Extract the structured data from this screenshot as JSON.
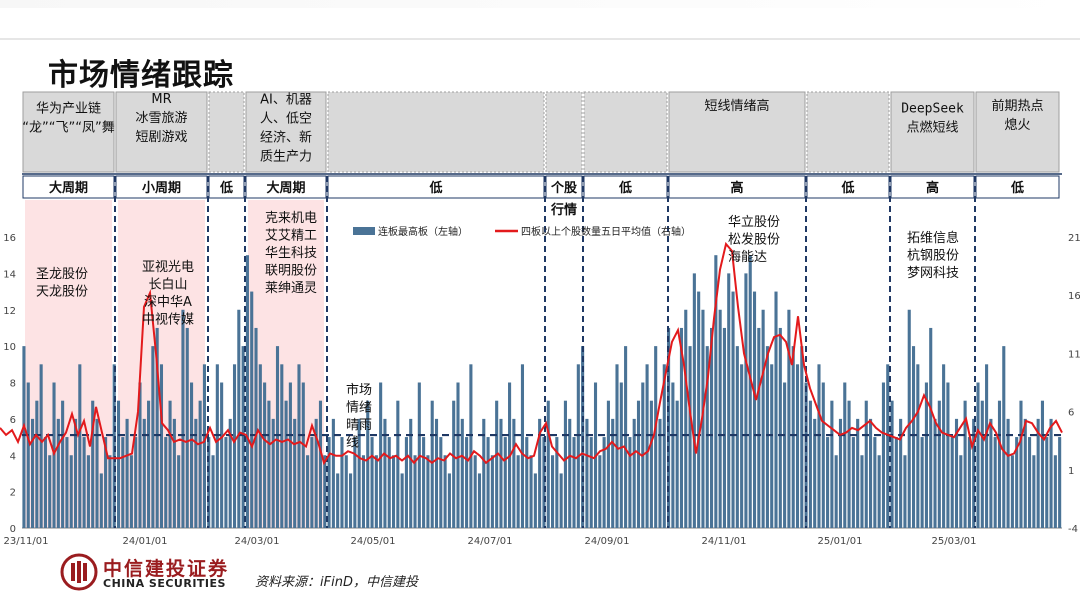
{
  "page": {
    "title": "市场情绪跟踪",
    "source": "资料来源：iFinD，中信建投"
  },
  "brand": {
    "name_cn": "中信建投证券",
    "name_en": "CHINA SECURITIES",
    "color": "#9a1c1f"
  },
  "themes": [
    {
      "lines": [
        "华为产业链",
        "“龙”“飞”“凤”舞"
      ],
      "cycle": "大周期"
    },
    {
      "lines": [
        "MR",
        "冰雪旅游",
        "短剧游戏"
      ],
      "cycle": "小周期"
    },
    {
      "lines": [],
      "cycle": "低"
    },
    {
      "lines": [
        "AI、机器",
        "人、低空",
        "经济、新",
        "质生产力"
      ],
      "cycle": "大周期"
    },
    {
      "lines": [],
      "cycle": "低"
    },
    {
      "lines": [],
      "cycle": "个股"
    },
    {
      "lines": [],
      "cycle": "低"
    },
    {
      "lines": [
        "短线情绪高"
      ],
      "cycle": "高"
    },
    {
      "lines": [],
      "cycle": "低"
    },
    {
      "lines": [
        "DeepSeek",
        "点燃短线"
      ],
      "cycle": "高"
    },
    {
      "lines": [
        "前期热点",
        "熄火"
      ],
      "cycle": "低"
    }
  ],
  "annotations": [
    {
      "lines": [
        "圣龙股份",
        "天龙股份"
      ]
    },
    {
      "lines": [
        "亚视光电",
        "长白山",
        "深中华A",
        "中视传媒"
      ]
    },
    {
      "lines": [
        "克来机电",
        "艾艾精工",
        "华生科技",
        "联明股份",
        "莱绅通灵"
      ]
    },
    {
      "lines": [
        "市场",
        "情绪",
        "晴雨",
        "线"
      ]
    },
    {
      "lines": [
        "行情"
      ]
    },
    {
      "lines": [
        "华立股份",
        "松发股份",
        "海能达"
      ]
    },
    {
      "lines": [
        "拓维信息",
        "杭钢股份",
        "梦网科技"
      ]
    }
  ],
  "chart_data": {
    "type": "bar+line",
    "x_tick_labels": [
      "23/11/01",
      "24/01/01",
      "24/03/01",
      "24/05/01",
      "24/07/01",
      "24/09/01",
      "24/11/01",
      "25/01/01",
      "25/03/01"
    ],
    "left_axis": {
      "ticks": [
        "0",
        "2",
        "4",
        "6",
        "8",
        "10",
        "12",
        "14",
        "16"
      ],
      "ylim": [
        0,
        16
      ]
    },
    "right_axis": {
      "ticks": [
        "-4",
        "1",
        "6",
        "11",
        "16",
        "21"
      ],
      "ylim": [
        -4,
        21
      ]
    },
    "legend": [
      "连板最高板（左轴）",
      "四板以上个股数量五日平均值（右轴）"
    ],
    "bar_color": "#4a7396",
    "line_color": "#e31a1c",
    "baseline_left_value": 5.0,
    "series": [
      {
        "name": "连板最高板（左轴）",
        "axis": "left",
        "values": [
          10,
          8,
          6,
          7,
          9,
          5,
          4,
          8,
          6,
          7,
          5,
          4,
          6,
          9,
          5,
          4,
          7,
          6,
          3,
          5,
          4,
          9,
          7,
          5,
          6,
          4,
          5,
          8,
          6,
          7,
          10,
          11,
          9,
          5,
          7,
          6,
          4,
          12,
          11,
          8,
          6,
          7,
          9,
          5,
          4,
          9,
          8,
          5,
          6,
          9,
          12,
          10,
          15,
          13,
          11,
          9,
          8,
          7,
          6,
          10,
          9,
          7,
          8,
          6,
          9,
          8,
          4,
          5,
          6,
          7,
          4,
          5,
          6,
          3,
          5,
          4,
          3,
          5,
          6,
          4,
          7,
          5,
          4,
          8,
          6,
          5,
          4,
          7,
          3,
          5,
          6,
          4,
          8,
          5,
          4,
          7,
          6,
          5,
          4,
          3,
          7,
          8,
          6,
          5,
          9,
          4,
          3,
          6,
          5,
          4,
          7,
          6,
          5,
          8,
          6,
          4,
          9,
          5,
          4,
          3,
          6,
          5,
          7,
          4,
          5,
          3,
          7,
          6,
          5,
          9,
          10,
          6,
          5,
          8,
          4,
          5,
          7,
          6,
          9,
          8,
          10,
          5,
          6,
          7,
          8,
          9,
          7,
          10,
          6,
          9,
          11,
          8,
          7,
          11,
          12,
          10,
          14,
          13,
          12,
          10,
          11,
          15,
          12,
          11,
          14,
          13,
          10,
          9,
          14,
          15,
          13,
          11,
          12,
          10,
          9,
          13,
          11,
          8,
          12,
          10,
          9,
          10,
          8,
          7,
          6,
          9,
          8,
          5,
          7,
          4,
          6,
          8,
          7,
          5,
          6,
          4,
          7,
          6,
          5,
          4,
          8,
          9,
          7,
          5,
          6,
          4,
          12,
          10,
          9,
          5,
          8,
          11,
          6,
          7,
          9,
          8,
          5,
          6,
          4,
          7,
          5,
          6,
          8,
          7,
          9,
          6,
          5,
          7,
          10,
          6,
          4,
          5,
          7,
          6,
          5,
          4,
          6,
          7,
          5,
          6,
          4,
          5
        ]
      },
      {
        "name": "四板以上个股数量五日平均值（右轴）",
        "axis": "right",
        "points": [
          [
            0,
            4.6
          ],
          [
            6,
            4.0
          ],
          [
            12,
            4.4
          ],
          [
            18,
            3.4
          ],
          [
            24,
            4.8
          ],
          [
            30,
            3.2
          ],
          [
            36,
            4.0
          ],
          [
            42,
            3.4
          ],
          [
            48,
            4.0
          ],
          [
            54,
            2.4
          ],
          [
            60,
            3.4
          ],
          [
            66,
            4.2
          ],
          [
            72,
            5.8
          ],
          [
            78,
            4.0
          ],
          [
            84,
            5.2
          ],
          [
            90,
            3.0
          ],
          [
            96,
            6.4
          ],
          [
            102,
            4.2
          ],
          [
            108,
            2.0
          ],
          [
            114,
            2.0
          ],
          [
            120,
            2.0
          ],
          [
            126,
            2.2
          ],
          [
            132,
            2.4
          ],
          [
            138,
            6.0
          ],
          [
            144,
            15.0
          ],
          [
            150,
            16.2
          ],
          [
            156,
            11.0
          ],
          [
            162,
            5.0
          ],
          [
            168,
            4.4
          ],
          [
            174,
            3.4
          ],
          [
            180,
            3.6
          ],
          [
            186,
            3.4
          ],
          [
            192,
            3.6
          ],
          [
            198,
            3.2
          ],
          [
            204,
            3.4
          ],
          [
            210,
            4.6
          ],
          [
            216,
            3.4
          ],
          [
            222,
            3.8
          ],
          [
            228,
            4.4
          ],
          [
            234,
            3.4
          ],
          [
            240,
            4.2
          ],
          [
            246,
            4.0
          ],
          [
            252,
            3.0
          ],
          [
            258,
            4.4
          ],
          [
            264,
            3.6
          ],
          [
            270,
            3.2
          ],
          [
            276,
            3.6
          ],
          [
            282,
            3.4
          ],
          [
            288,
            3.6
          ],
          [
            294,
            3.2
          ],
          [
            300,
            3.4
          ],
          [
            306,
            3.0
          ],
          [
            312,
            4.8
          ],
          [
            318,
            3.4
          ],
          [
            324,
            1.6
          ],
          [
            330,
            2.4
          ],
          [
            336,
            2.2
          ],
          [
            342,
            2.2
          ],
          [
            348,
            2.6
          ],
          [
            354,
            2.4
          ],
          [
            360,
            2.0
          ],
          [
            366,
            1.8
          ],
          [
            372,
            2.2
          ],
          [
            378,
            1.8
          ],
          [
            384,
            2.4
          ],
          [
            390,
            2.0
          ],
          [
            396,
            2.2
          ],
          [
            402,
            1.8
          ],
          [
            408,
            2.2
          ],
          [
            414,
            1.6
          ],
          [
            420,
            2.2
          ],
          [
            426,
            2.0
          ],
          [
            432,
            1.6
          ],
          [
            438,
            2.0
          ],
          [
            444,
            1.8
          ],
          [
            450,
            2.4
          ],
          [
            456,
            2.0
          ],
          [
            462,
            2.2
          ],
          [
            468,
            1.8
          ],
          [
            474,
            2.6
          ],
          [
            480,
            2.2
          ],
          [
            486,
            1.6
          ],
          [
            492,
            2.0
          ],
          [
            498,
            2.4
          ],
          [
            504,
            1.8
          ],
          [
            510,
            2.2
          ],
          [
            516,
            3.2
          ],
          [
            522,
            2.4
          ],
          [
            528,
            2.0
          ],
          [
            534,
            2.2
          ],
          [
            540,
            4.2
          ],
          [
            546,
            5.0
          ],
          [
            552,
            3.0
          ],
          [
            558,
            2.4
          ],
          [
            564,
            1.8
          ],
          [
            570,
            2.2
          ],
          [
            576,
            2.0
          ],
          [
            582,
            2.4
          ],
          [
            588,
            2.2
          ],
          [
            594,
            2.0
          ],
          [
            600,
            2.6
          ],
          [
            606,
            2.8
          ],
          [
            612,
            3.4
          ],
          [
            618,
            2.8
          ],
          [
            624,
            3.0
          ],
          [
            630,
            2.2
          ],
          [
            636,
            2.6
          ],
          [
            642,
            2.2
          ],
          [
            648,
            2.6
          ],
          [
            654,
            4.0
          ],
          [
            660,
            6.8
          ],
          [
            666,
            9.4
          ],
          [
            672,
            12.0
          ],
          [
            678,
            13.0
          ],
          [
            684,
            10.0
          ],
          [
            690,
            6.0
          ],
          [
            696,
            2.4
          ],
          [
            702,
            5.4
          ],
          [
            708,
            9.0
          ],
          [
            714,
            14.0
          ],
          [
            720,
            18.2
          ],
          [
            726,
            20.4
          ],
          [
            732,
            19.8
          ],
          [
            738,
            15.0
          ],
          [
            744,
            11.0
          ],
          [
            750,
            9.0
          ],
          [
            756,
            7.0
          ],
          [
            762,
            9.0
          ],
          [
            768,
            11.0
          ],
          [
            774,
            12.4
          ],
          [
            780,
            12.6
          ],
          [
            786,
            12.0
          ],
          [
            792,
            10.0
          ],
          [
            798,
            14.2
          ],
          [
            804,
            10.0
          ],
          [
            810,
            8.0
          ],
          [
            816,
            6.6
          ],
          [
            822,
            5.2
          ],
          [
            828,
            4.8
          ],
          [
            834,
            4.4
          ],
          [
            840,
            4.0
          ],
          [
            846,
            4.2
          ],
          [
            852,
            4.6
          ],
          [
            858,
            4.4
          ],
          [
            864,
            4.8
          ],
          [
            870,
            5.2
          ],
          [
            876,
            4.6
          ],
          [
            882,
            4.2
          ],
          [
            888,
            4.0
          ],
          [
            894,
            3.8
          ],
          [
            900,
            3.6
          ],
          [
            906,
            4.6
          ],
          [
            912,
            5.2
          ],
          [
            918,
            6.0
          ],
          [
            924,
            7.4
          ],
          [
            930,
            6.4
          ],
          [
            936,
            5.0
          ],
          [
            942,
            4.2
          ],
          [
            948,
            4.0
          ],
          [
            954,
            3.8
          ],
          [
            960,
            4.6
          ],
          [
            966,
            5.4
          ],
          [
            972,
            3.0
          ],
          [
            978,
            4.4
          ],
          [
            984,
            3.6
          ],
          [
            990,
            5.0
          ],
          [
            996,
            4.2
          ],
          [
            1002,
            2.8
          ],
          [
            1008,
            2.2
          ],
          [
            1014,
            2.4
          ],
          [
            1020,
            3.4
          ],
          [
            1026,
            5.2
          ],
          [
            1032,
            5.0
          ],
          [
            1038,
            4.2
          ],
          [
            1044,
            3.6
          ],
          [
            1050,
            4.6
          ],
          [
            1056,
            5.2
          ],
          [
            1062,
            4.2
          ]
        ]
      }
    ]
  }
}
